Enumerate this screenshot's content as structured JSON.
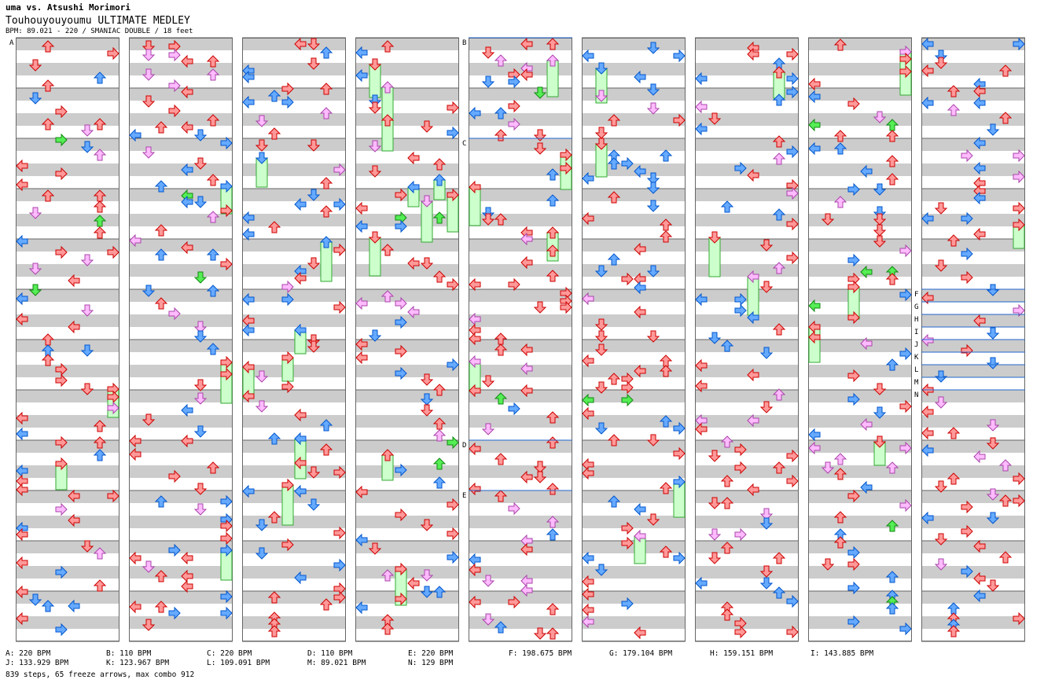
{
  "header": {
    "artist": "uma vs. Atsushi Morimori",
    "title": "Touhouyouyoumu ULTIMATE MEDLEY",
    "meta": "BPM: 89.021 - 220 / SMANIAC DOUBLE / 18 feet"
  },
  "markers": {
    "A": "A",
    "B": "B",
    "C": "C",
    "D": "D",
    "E": "E",
    "F": "F",
    "G": "G",
    "H": "H",
    "I": "I",
    "J": "J",
    "K": "K",
    "L": "L",
    "M": "M",
    "N": "N"
  },
  "legend": {
    "A": "A: 220 BPM",
    "B": "B: 110 BPM",
    "C": "C: 220 BPM",
    "D": "D: 110 BPM",
    "E": "E: 220 BPM",
    "F": "F: 198.675 BPM",
    "G": "G: 179.104 BPM",
    "H": "H: 159.151 BPM",
    "I": "I: 143.885 BPM",
    "J": "J: 133.929 BPM",
    "K": "K: 123.967 BPM",
    "L": "L: 109.091 BPM",
    "M": "M: 89.021 BPM",
    "N": "N: 129 BPM"
  },
  "summary": "839 steps, 65 freeze arrows, max combo 912",
  "colors": {
    "stripe": "#cccccc",
    "red": "#ff9999",
    "redEdge": "#cc0000",
    "blue": "#66aaff",
    "blueEdge": "#0055cc",
    "pink": "#ffbbff",
    "pinkEdge": "#aa44aa",
    "yellow": "#ffee44",
    "green": "#55ee55",
    "freeze": "#ccffcc",
    "freezeEdge": "#33aa33"
  }
}
